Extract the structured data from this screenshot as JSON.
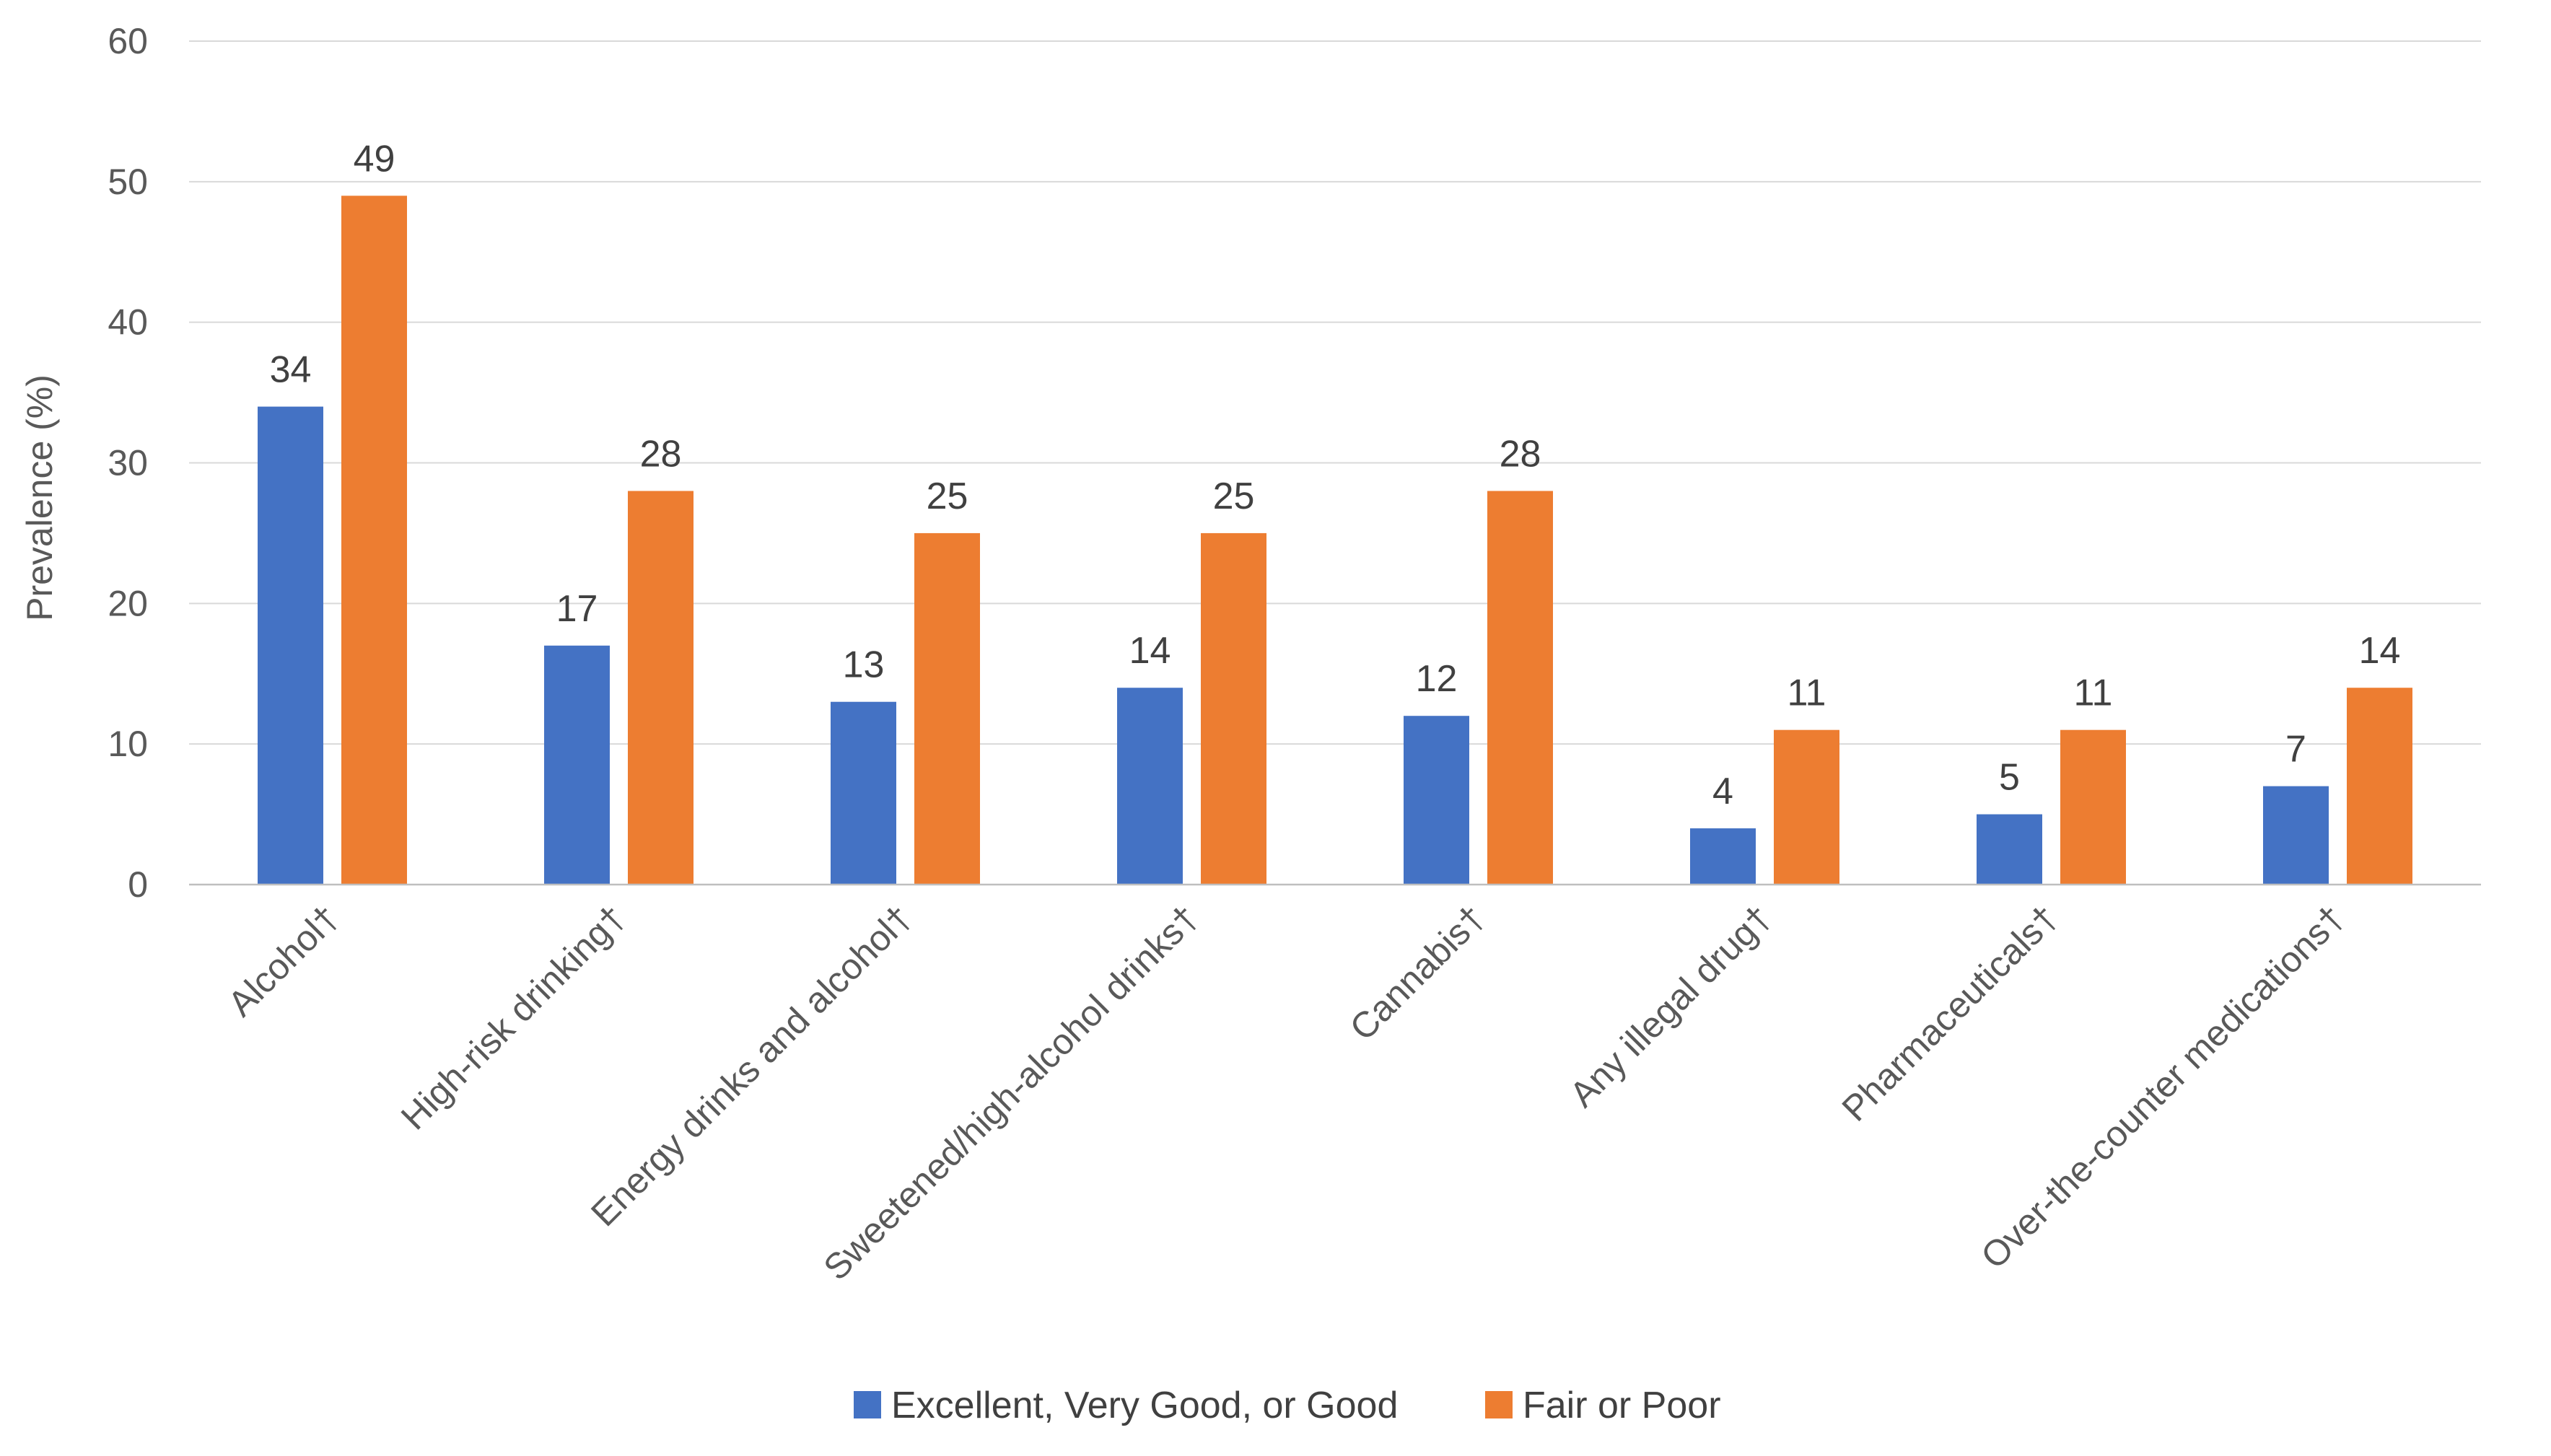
{
  "chart_data": {
    "type": "bar",
    "title": "",
    "xlabel": "",
    "ylabel": "Prevalence (%)",
    "ylim": [
      0,
      60
    ],
    "yticks": [
      0,
      10,
      20,
      30,
      40,
      50,
      60
    ],
    "grid": true,
    "legend_position": "bottom",
    "categories": [
      "Alcohol†",
      "High-risk drinking†",
      "Energy drinks and alcohol†",
      "Sweetened/high-alcohol drinks†",
      "Cannabis†",
      "Any illegal drug†",
      "Pharmaceuticals†",
      "Over-the-counter medications†"
    ],
    "series": [
      {
        "name": "Excellent, Very Good, or Good",
        "color": "#4472C4",
        "values": [
          34,
          17,
          13,
          14,
          12,
          4,
          5,
          7
        ]
      },
      {
        "name": "Fair or Poor",
        "color": "#ED7D31",
        "values": [
          49,
          28,
          25,
          25,
          28,
          11,
          11,
          14
        ]
      }
    ]
  }
}
